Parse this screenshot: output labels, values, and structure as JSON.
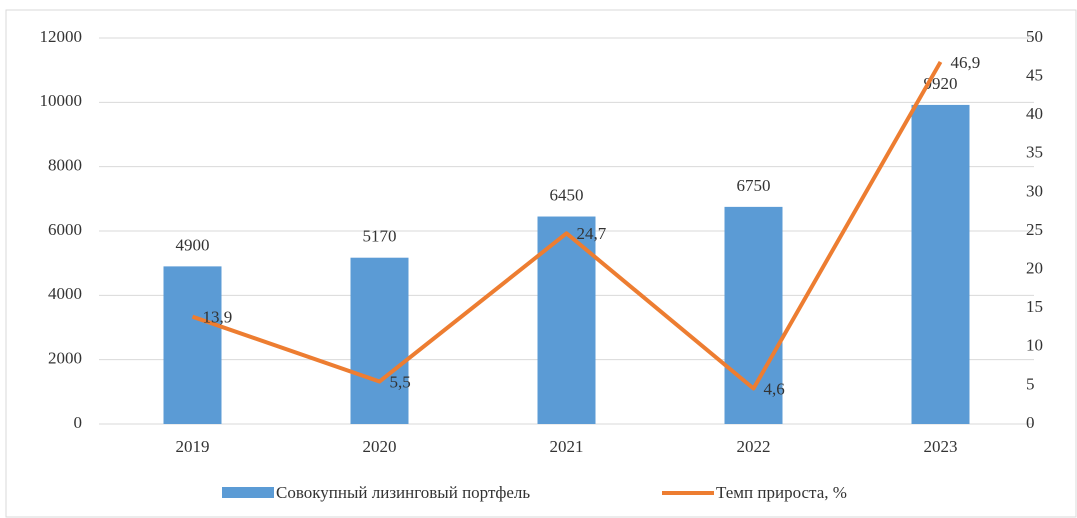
{
  "chart_data": {
    "type": "bar",
    "categories": [
      "2019",
      "2020",
      "2021",
      "2022",
      "2023"
    ],
    "series": [
      {
        "name": "Совокупный лизинговый портфель",
        "type": "bar",
        "color": "#5b9bd5",
        "values": [
          4900,
          5170,
          6450,
          6750,
          9920
        ]
      },
      {
        "name": "Темп прироста, %",
        "type": "line",
        "axis": "y2",
        "color": "#ed7d31",
        "values": [
          13.9,
          5.5,
          24.7,
          4.6,
          46.9
        ],
        "value_labels": [
          "13,9",
          "5,5",
          "24,7",
          "4,6",
          "46,9"
        ]
      }
    ],
    "ylim": [
      0,
      12000
    ],
    "yticks": [
      0,
      2000,
      4000,
      6000,
      8000,
      10000,
      12000
    ],
    "y2lim": [
      0,
      50
    ],
    "y2ticks": [
      0,
      5,
      10,
      15,
      20,
      25,
      30,
      35,
      40,
      45,
      50
    ],
    "grid": true,
    "legend": "bottom"
  }
}
